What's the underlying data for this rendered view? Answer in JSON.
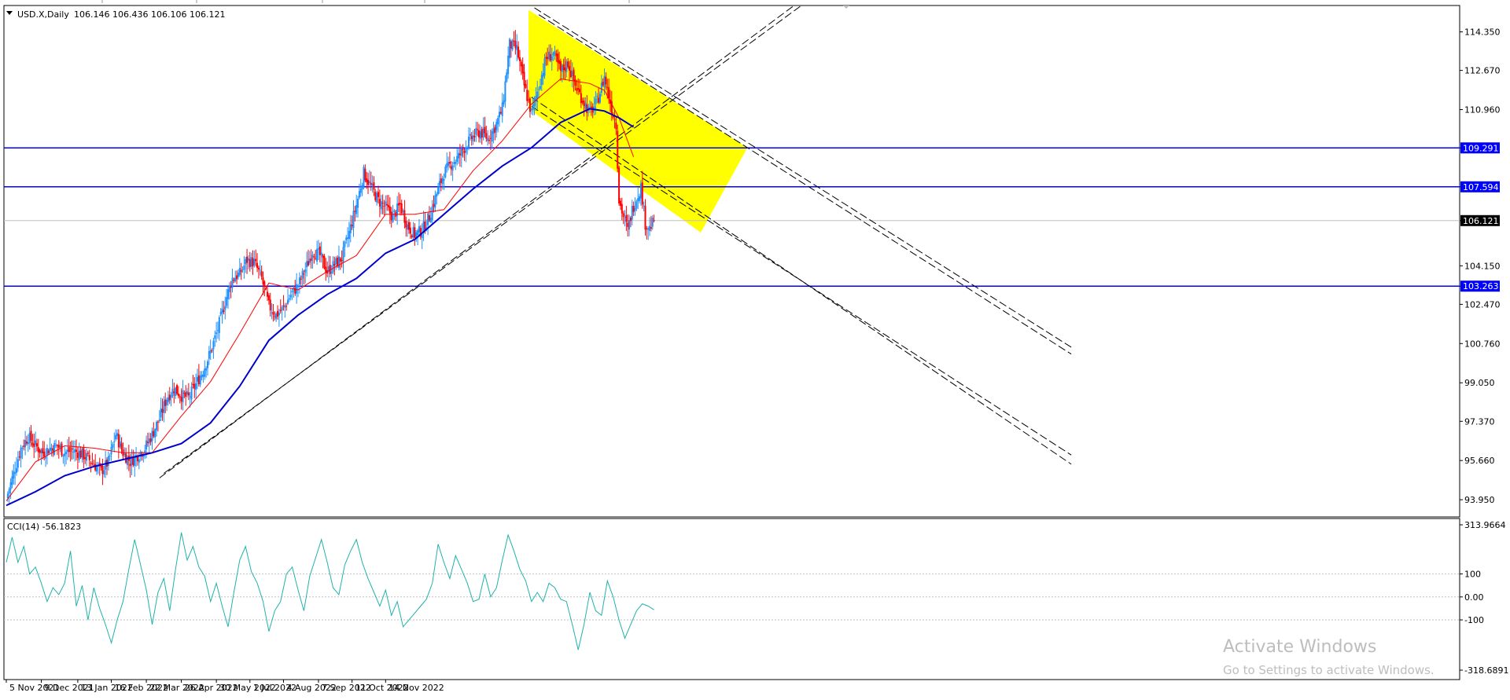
{
  "header": {
    "symbol_label": "USD.X,Daily",
    "ohlc_label": "106.146 106.436 106.106 106.121"
  },
  "indicator": {
    "label": "CCI(14) -56.1823"
  },
  "watermark": {
    "title": "Activate Windows",
    "subtitle": "Go to Settings to activate Windows."
  },
  "colors": {
    "background": "#ffffff",
    "bull_candle": "#1e90ff",
    "bear_candle": "#ff0000",
    "ma_fast": "#ff0000",
    "ma_slow": "#0000cd",
    "level_line": "#0000ff",
    "highlight": "#ffff00",
    "cci_line": "#20b2aa",
    "trendline": "#000000",
    "current_price_bg": "#000000",
    "level_label_bg": "#0000ff"
  },
  "chart_data": [
    {
      "type": "candlestick",
      "symbol": "USD.X",
      "timeframe": "Daily",
      "y_ticks": [
        "114.350",
        "112.670",
        "110.960",
        "109.291",
        "107.594",
        "106.121",
        "104.150",
        "103.263",
        "102.470",
        "100.760",
        "99.050",
        "97.370",
        "95.660",
        "93.950"
      ],
      "ylim": [
        93.2,
        115.5
      ],
      "x_ticks": [
        "5 Nov 2021",
        "9 Dec 2021",
        "13 Jan 2022",
        "16 Feb 2022",
        "22 Mar 2022",
        "26 Apr 2022",
        "30 May 2022",
        "1 Jul 2022",
        "4 Aug 2022",
        "7 Sep 2022",
        "11 Oct 2022",
        "14 Nov 2022"
      ],
      "horizontal_levels": [
        109.291,
        107.594,
        103.263
      ],
      "current_price": 106.121,
      "last_bar": {
        "open": 106.146,
        "high": 106.436,
        "low": 106.106,
        "close": 106.121
      },
      "close_path": [
        [
          0,
          94.0
        ],
        [
          5,
          95.1
        ],
        [
          10,
          96.2
        ],
        [
          15,
          96.7
        ],
        [
          20,
          96.3
        ],
        [
          25,
          96.0
        ],
        [
          30,
          96.2
        ],
        [
          35,
          96.3
        ],
        [
          40,
          96.0
        ],
        [
          45,
          96.1
        ],
        [
          50,
          96.0
        ],
        [
          55,
          95.8
        ],
        [
          60,
          95.5
        ],
        [
          65,
          95.2
        ],
        [
          70,
          95.6
        ],
        [
          75,
          96.8
        ],
        [
          80,
          96.0
        ],
        [
          85,
          95.6
        ],
        [
          90,
          95.9
        ],
        [
          95,
          96.2
        ],
        [
          100,
          96.8
        ],
        [
          105,
          97.5
        ],
        [
          110,
          98.4
        ],
        [
          115,
          98.8
        ],
        [
          120,
          98.5
        ],
        [
          125,
          98.4
        ],
        [
          130,
          99.0
        ],
        [
          135,
          99.6
        ],
        [
          140,
          100.4
        ],
        [
          145,
          101.4
        ],
        [
          150,
          102.6
        ],
        [
          155,
          103.6
        ],
        [
          160,
          103.8
        ],
        [
          165,
          104.4
        ],
        [
          170,
          104.3
        ],
        [
          175,
          103.6
        ],
        [
          180,
          102.4
        ],
        [
          185,
          102.0
        ],
        [
          190,
          102.3
        ],
        [
          195,
          102.9
        ],
        [
          200,
          103.3
        ],
        [
          205,
          104.0
        ],
        [
          210,
          104.8
        ],
        [
          215,
          104.6
        ],
        [
          220,
          103.9
        ],
        [
          225,
          104.2
        ],
        [
          230,
          104.5
        ],
        [
          235,
          105.6
        ],
        [
          240,
          106.8
        ],
        [
          245,
          108.2
        ],
        [
          250,
          107.6
        ],
        [
          255,
          107.0
        ],
        [
          260,
          106.7
        ],
        [
          265,
          106.3
        ],
        [
          270,
          106.8
        ],
        [
          275,
          105.9
        ],
        [
          280,
          105.5
        ],
        [
          285,
          105.7
        ],
        [
          290,
          106.3
        ],
        [
          295,
          107.3
        ],
        [
          300,
          108.2
        ],
        [
          305,
          108.6
        ],
        [
          310,
          108.9
        ],
        [
          315,
          109.4
        ],
        [
          320,
          109.8
        ],
        [
          325,
          110.0
        ],
        [
          330,
          109.7
        ],
        [
          335,
          110.2
        ],
        [
          340,
          111.0
        ],
        [
          345,
          113.8
        ],
        [
          350,
          113.6
        ],
        [
          355,
          112.0
        ],
        [
          360,
          110.8
        ],
        [
          365,
          112.0
        ],
        [
          370,
          113.2
        ],
        [
          375,
          113.4
        ],
        [
          380,
          112.6
        ],
        [
          385,
          113.0
        ],
        [
          390,
          112.0
        ],
        [
          395,
          111.4
        ],
        [
          400,
          110.8
        ],
        [
          405,
          111.3
        ],
        [
          410,
          112.4
        ],
        [
          415,
          111.0
        ],
        [
          418,
          110.3
        ],
        [
          420,
          107.0
        ],
        [
          423,
          106.3
        ],
        [
          426,
          105.7
        ],
        [
          429,
          106.6
        ],
        [
          432,
          107.1
        ],
        [
          435,
          107.6
        ],
        [
          438,
          106.0
        ],
        [
          441,
          105.8
        ],
        [
          444,
          106.1
        ]
      ],
      "sma_fast": [
        [
          0,
          93.9
        ],
        [
          20,
          95.6
        ],
        [
          40,
          96.3
        ],
        [
          60,
          96.2
        ],
        [
          80,
          96.0
        ],
        [
          100,
          96.0
        ],
        [
          120,
          97.6
        ],
        [
          140,
          99.1
        ],
        [
          160,
          101.2
        ],
        [
          180,
          103.4
        ],
        [
          200,
          103.1
        ],
        [
          220,
          103.9
        ],
        [
          240,
          104.6
        ],
        [
          260,
          106.4
        ],
        [
          280,
          106.4
        ],
        [
          300,
          106.6
        ],
        [
          320,
          108.3
        ],
        [
          340,
          109.6
        ],
        [
          360,
          111.2
        ],
        [
          380,
          112.3
        ],
        [
          400,
          112.1
        ],
        [
          410,
          111.8
        ],
        [
          420,
          110.6
        ],
        [
          430,
          108.9
        ]
      ],
      "sma_slow": [
        [
          0,
          93.7
        ],
        [
          20,
          94.3
        ],
        [
          40,
          95.0
        ],
        [
          60,
          95.4
        ],
        [
          80,
          95.7
        ],
        [
          100,
          96.0
        ],
        [
          120,
          96.4
        ],
        [
          140,
          97.3
        ],
        [
          160,
          98.9
        ],
        [
          180,
          100.9
        ],
        [
          200,
          102.0
        ],
        [
          220,
          102.9
        ],
        [
          240,
          103.6
        ],
        [
          260,
          104.7
        ],
        [
          280,
          105.3
        ],
        [
          300,
          106.4
        ],
        [
          320,
          107.5
        ],
        [
          340,
          108.5
        ],
        [
          360,
          109.3
        ],
        [
          380,
          110.4
        ],
        [
          400,
          111.0
        ],
        [
          410,
          110.9
        ],
        [
          420,
          110.6
        ],
        [
          430,
          110.2
        ]
      ],
      "trendlines": [
        {
          "style": "dashed",
          "from": [
            105,
            94.9
          ],
          "to": [
            540,
            115.5
          ]
        },
        {
          "style": "dashed",
          "from": [
            108,
            95.1
          ],
          "to": [
            545,
            115.5
          ]
        },
        {
          "style": "dashed",
          "from": [
            365,
            115.1
          ],
          "to": [
            730,
            100.3
          ]
        },
        {
          "style": "dashed",
          "from": [
            362,
            115.4
          ],
          "to": [
            730,
            100.6
          ]
        },
        {
          "style": "dashed",
          "from": [
            360,
            111.5
          ],
          "to": [
            730,
            95.5
          ]
        },
        {
          "style": "dashed",
          "from": [
            360,
            111.1
          ],
          "to": [
            730,
            95.9
          ]
        }
      ],
      "highlight_zone": [
        [
          358,
          115.3
        ],
        [
          508,
          109.3
        ],
        [
          476,
          105.6
        ],
        [
          358,
          111.0
        ]
      ]
    },
    {
      "type": "line",
      "title": "CCI(14) -56.1823",
      "series": [
        {
          "name": "CCI(14)",
          "values": [
            [
              0,
              150
            ],
            [
              4,
              260
            ],
            [
              8,
              150
            ],
            [
              12,
              220
            ],
            [
              16,
              100
            ],
            [
              20,
              130
            ],
            [
              24,
              60
            ],
            [
              28,
              -20
            ],
            [
              32,
              40
            ],
            [
              36,
              10
            ],
            [
              40,
              60
            ],
            [
              44,
              200
            ],
            [
              48,
              -40
            ],
            [
              52,
              50
            ],
            [
              56,
              -100
            ],
            [
              60,
              40
            ],
            [
              64,
              -50
            ],
            [
              68,
              -120
            ],
            [
              72,
              -200
            ],
            [
              76,
              -100
            ],
            [
              80,
              -20
            ],
            [
              84,
              120
            ],
            [
              88,
              250
            ],
            [
              92,
              140
            ],
            [
              96,
              30
            ],
            [
              100,
              -120
            ],
            [
              104,
              20
            ],
            [
              108,
              80
            ],
            [
              112,
              -60
            ],
            [
              116,
              120
            ],
            [
              120,
              280
            ],
            [
              124,
              160
            ],
            [
              128,
              220
            ],
            [
              132,
              130
            ],
            [
              136,
              90
            ],
            [
              140,
              -20
            ],
            [
              144,
              60
            ],
            [
              148,
              -40
            ],
            [
              152,
              -130
            ],
            [
              156,
              20
            ],
            [
              160,
              160
            ],
            [
              164,
              220
            ],
            [
              168,
              110
            ],
            [
              172,
              60
            ],
            [
              176,
              -20
            ],
            [
              180,
              -150
            ],
            [
              184,
              -60
            ],
            [
              188,
              -20
            ],
            [
              192,
              100
            ],
            [
              196,
              130
            ],
            [
              200,
              30
            ],
            [
              204,
              -60
            ],
            [
              208,
              90
            ],
            [
              212,
              170
            ],
            [
              216,
              250
            ],
            [
              220,
              150
            ],
            [
              224,
              40
            ],
            [
              228,
              10
            ],
            [
              232,
              140
            ],
            [
              236,
              200
            ],
            [
              240,
              250
            ],
            [
              244,
              150
            ],
            [
              248,
              80
            ],
            [
              252,
              20
            ],
            [
              256,
              -40
            ],
            [
              260,
              30
            ],
            [
              264,
              -80
            ],
            [
              268,
              -20
            ],
            [
              272,
              -130
            ],
            [
              276,
              -100
            ],
            [
              280,
              -70
            ],
            [
              284,
              -40
            ],
            [
              288,
              -10
            ],
            [
              292,
              60
            ],
            [
              296,
              230
            ],
            [
              300,
              150
            ],
            [
              304,
              80
            ],
            [
              308,
              180
            ],
            [
              312,
              120
            ],
            [
              316,
              60
            ],
            [
              320,
              -20
            ],
            [
              324,
              -10
            ],
            [
              328,
              100
            ],
            [
              332,
              0
            ],
            [
              336,
              40
            ],
            [
              340,
              160
            ],
            [
              344,
              270
            ],
            [
              348,
              200
            ],
            [
              352,
              120
            ],
            [
              356,
              70
            ],
            [
              360,
              -20
            ],
            [
              364,
              20
            ],
            [
              368,
              -20
            ],
            [
              372,
              60
            ],
            [
              376,
              40
            ],
            [
              380,
              -10
            ],
            [
              384,
              -20
            ],
            [
              388,
              -120
            ],
            [
              392,
              -230
            ],
            [
              396,
              -120
            ],
            [
              400,
              20
            ],
            [
              404,
              -60
            ],
            [
              408,
              -80
            ],
            [
              412,
              70
            ],
            [
              416,
              0
            ],
            [
              420,
              -100
            ],
            [
              424,
              -180
            ],
            [
              428,
              -120
            ],
            [
              432,
              -60
            ],
            [
              436,
              -30
            ],
            [
              440,
              -40
            ],
            [
              444,
              -56
            ]
          ]
        }
      ],
      "y_ticks": [
        "313.9664",
        "100",
        "0.00",
        "-100",
        "-318.6891"
      ],
      "ylim": [
        -318.6891,
        313.9664
      ],
      "reference_lines": [
        100,
        0,
        -100
      ]
    }
  ]
}
